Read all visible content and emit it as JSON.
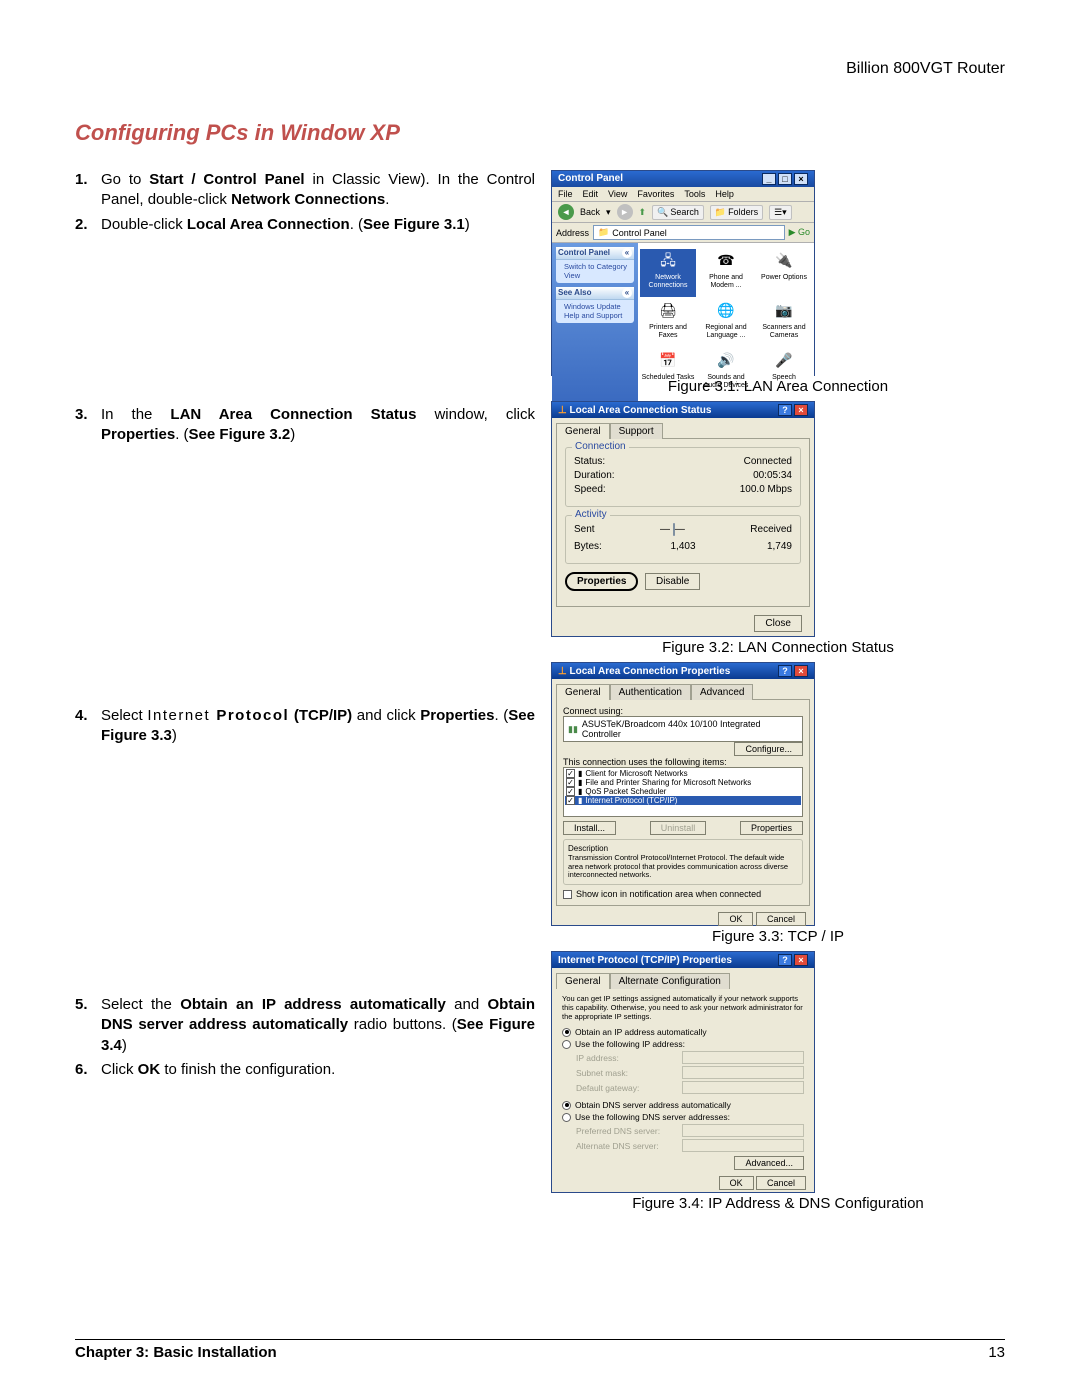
{
  "header": {
    "doc_title": "Billion 800VGT Router"
  },
  "section_title": "Configuring PCs in Window XP",
  "steps": {
    "s1": {
      "num": "1.",
      "pre": "Go to ",
      "b1": "Start / Control Panel",
      "mid": " in Classic View). In the Control Panel, double-click ",
      "b2": "Network Connections",
      "post": "."
    },
    "s2": {
      "num": "2.",
      "pre": "Double-click ",
      "b1": "Local Area Connection",
      "post": ". (",
      "b2": "See Figure 3.1",
      "end": ")"
    },
    "s3": {
      "num": "3.",
      "pre": "In the ",
      "b1": "LAN Area Connection Status",
      "mid": " window, click ",
      "b2": "Properties",
      "post": ". (",
      "b3": "See Figure 3.2",
      "end": ")"
    },
    "s4": {
      "num": "4.",
      "pre": "Select ",
      "sp": "Internet ",
      "b1": "Protocol",
      "mid": " ",
      "b2": "(TCP/IP)",
      "mid2": " and click ",
      "b3": "Properties",
      "post": ". (",
      "b4": "See Figure 3.3",
      "end": ")"
    },
    "s5": {
      "num": "5.",
      "pre": "Select the ",
      "b1": "Obtain an IP address automatically",
      "mid": " and ",
      "b2": "Obtain DNS server address automatically",
      "mid2": " radio buttons. (",
      "b3": "See Figure 3.4",
      "end": ")"
    },
    "s6": {
      "num": "6.",
      "pre": "Click ",
      "b1": "OK",
      "post": " to finish the configuration."
    }
  },
  "captions": {
    "f31": "Figure 3.1: LAN Area Connection",
    "f32": "Figure 3.2: LAN Connection Status",
    "f33": "Figure 3.3: TCP / IP",
    "f34": "Figure 3.4: IP Address & DNS Configuration"
  },
  "cp": {
    "title": "Control Panel",
    "menu": [
      "File",
      "Edit",
      "View",
      "Favorites",
      "Tools",
      "Help"
    ],
    "back": "Back",
    "search": "Search",
    "folders": "Folders",
    "addr_label": "Address",
    "addr_value": "Control Panel",
    "go": "Go",
    "panel1_title": "Control Panel",
    "panel1_link": "Switch to Category View",
    "panel2_title": "See Also",
    "panel2_l1": "Windows Update",
    "panel2_l2": "Help and Support",
    "icons": [
      {
        "label": "Network Connections",
        "glyph": "🖧",
        "sel": true
      },
      {
        "label": "Phone and Modem ...",
        "glyph": "☎"
      },
      {
        "label": "Power Options",
        "glyph": "🔌"
      },
      {
        "label": "Printers and Faxes",
        "glyph": "🖨"
      },
      {
        "label": "Regional and Language ...",
        "glyph": "🌐"
      },
      {
        "label": "Scanners and Cameras",
        "glyph": "📷"
      },
      {
        "label": "Scheduled Tasks",
        "glyph": "📅"
      },
      {
        "label": "Sounds and Audio Devices",
        "glyph": "🔊"
      },
      {
        "label": "Speech",
        "glyph": "🎤"
      }
    ]
  },
  "ls": {
    "title": "Local Area Connection Status",
    "tab1": "General",
    "tab2": "Support",
    "grp1": "Connection",
    "status_l": "Status:",
    "status_v": "Connected",
    "dur_l": "Duration:",
    "dur_v": "00:05:34",
    "speed_l": "Speed:",
    "speed_v": "100.0 Mbps",
    "grp2": "Activity",
    "sent": "Sent",
    "recv": "Received",
    "bytes_l": "Bytes:",
    "bytes_s": "1,403",
    "bytes_r": "1,749",
    "btn_prop": "Properties",
    "btn_dis": "Disable",
    "btn_close": "Close"
  },
  "pr": {
    "title": "Local Area Connection Properties",
    "tab1": "General",
    "tab2": "Authentication",
    "tab3": "Advanced",
    "conn_l": "Connect using:",
    "adapter": "ASUSTeK/Broadcom 440x 10/100 Integrated Controller",
    "cfg": "Configure...",
    "uses": "This connection uses the following items:",
    "items": [
      "Client for Microsoft Networks",
      "File and Printer Sharing for Microsoft Networks",
      "QoS Packet Scheduler",
      "Internet Protocol (TCP/IP)"
    ],
    "install": "Install...",
    "uninstall": "Uninstall",
    "props": "Properties",
    "desc_t": "Description",
    "desc": "Transmission Control Protocol/Internet Protocol. The default wide area network protocol that provides communication across diverse interconnected networks.",
    "notify": "Show icon in notification area when connected",
    "ok": "OK",
    "cancel": "Cancel"
  },
  "tp": {
    "title": "Internet Protocol (TCP/IP) Properties",
    "tab1": "General",
    "tab2": "Alternate Configuration",
    "intro": "You can get IP settings assigned automatically if your network supports this capability. Otherwise, you need to ask your network administrator for the appropriate IP settings.",
    "r1": "Obtain an IP address automatically",
    "r2": "Use the following IP address:",
    "ip_l": "IP address:",
    "sm_l": "Subnet mask:",
    "gw_l": "Default gateway:",
    "r3": "Obtain DNS server address automatically",
    "r4": "Use the following DNS server addresses:",
    "pd_l": "Preferred DNS server:",
    "ad_l": "Alternate DNS server:",
    "adv": "Advanced...",
    "ok": "OK",
    "cancel": "Cancel"
  },
  "footer": {
    "chapter": "Chapter 3: Basic Installation",
    "page": "13"
  }
}
